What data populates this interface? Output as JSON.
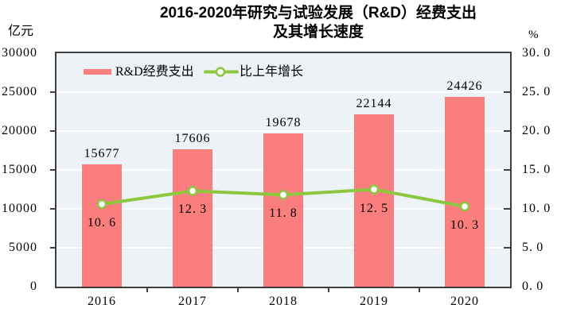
{
  "title": {
    "line1": "2016-2020年研究与试验发展（R&D）经费支出",
    "line2": "及其增长速度"
  },
  "axes": {
    "left_unit": "亿元",
    "right_unit": "%"
  },
  "legend": [
    {
      "label": "R&D经费支出",
      "type": "bar"
    },
    {
      "label": "比上年增长",
      "type": "line"
    }
  ],
  "colors": {
    "bar": "#fb7e7e",
    "line": "#8cc83f",
    "marker_fill": "#ffffff",
    "plot_bg": "#ecf2f5",
    "grid": "#ffffff",
    "spine": "#3f3f3f",
    "text": "#000000"
  },
  "chart_data": {
    "type": "bar",
    "title": "2016-2020年研究与试验发展（R&D）经费支出及其增长速度",
    "categories": [
      "2016",
      "2017",
      "2018",
      "2019",
      "2020"
    ],
    "series": [
      {
        "name": "R&D经费支出",
        "type": "bar",
        "axis": "left",
        "values": [
          15677,
          17606,
          19678,
          22144,
          24426
        ]
      },
      {
        "name": "比上年增长",
        "type": "line",
        "axis": "right",
        "values": [
          10.6,
          12.3,
          11.8,
          12.5,
          10.3
        ]
      }
    ],
    "left_axis": {
      "label": "亿元",
      "min": 0,
      "max": 30000,
      "step": 5000,
      "tick_labels": [
        "0",
        "5000",
        "10000",
        "15000",
        "20000",
        "25000",
        "30000"
      ]
    },
    "right_axis": {
      "label": "%",
      "min": 0,
      "max": 30,
      "step": 5,
      "tick_labels": [
        "0.0",
        "5.0",
        "10.0",
        "15.0",
        "20.0",
        "25.0",
        "30.0"
      ]
    },
    "grid": true,
    "legend_position": "top-inside"
  }
}
